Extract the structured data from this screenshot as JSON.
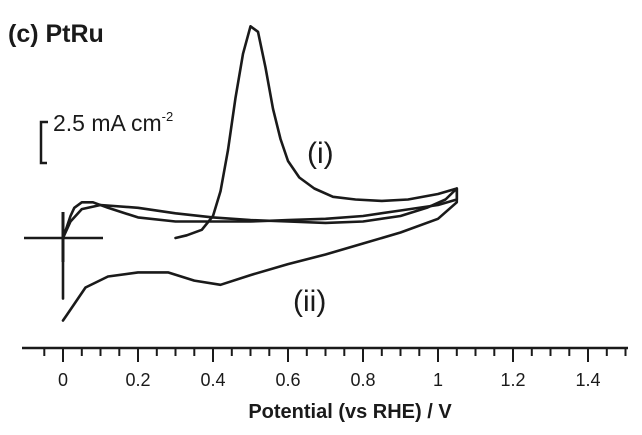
{
  "chart_data": {
    "type": "line",
    "panel_label": "(c) PtRu",
    "xlabel": "Potential (vs RHE) / V",
    "ylabel": "",
    "xlim": [
      -0.05,
      1.55
    ],
    "x_ticks": [
      "0",
      "0.2",
      "0.4",
      "0.6",
      "0.8",
      "1",
      "1.2",
      "1.4"
    ],
    "x_tick_values": [
      0,
      0.2,
      0.4,
      0.6,
      0.8,
      1.0,
      1.2,
      1.4
    ],
    "x_minor_step": 0.05,
    "ylim": [
      -3.8,
      8.2
    ],
    "y_units": "mA cm-2",
    "grid": false,
    "scale_bar": {
      "value": 2.5,
      "label_main": "2.5 mA cm",
      "label_exp": "-2"
    },
    "series": [
      {
        "label": "(i)",
        "x": [
          0.3,
          0.33,
          0.37,
          0.4,
          0.42,
          0.44,
          0.46,
          0.48,
          0.5,
          0.52,
          0.54,
          0.56,
          0.58,
          0.6,
          0.63,
          0.67,
          0.72,
          0.78,
          0.85,
          0.92,
          1.0,
          1.05,
          1.05,
          1.0,
          0.9,
          0.8,
          0.7,
          0.6,
          0.5,
          0.4,
          0.3,
          0.2,
          0.12,
          0.08,
          0.05,
          0.03,
          0.02,
          0.01,
          0.0,
          0.0,
          0.0
        ],
        "y": [
          0.0,
          0.1,
          0.3,
          0.8,
          1.7,
          3.2,
          5.1,
          6.7,
          7.7,
          7.5,
          6.2,
          4.7,
          3.6,
          2.8,
          2.2,
          1.8,
          1.5,
          1.4,
          1.35,
          1.4,
          1.6,
          1.8,
          1.4,
          1.2,
          1.0,
          0.8,
          0.7,
          0.65,
          0.6,
          0.6,
          0.6,
          0.75,
          1.1,
          1.3,
          1.3,
          1.1,
          0.8,
          0.4,
          0.0,
          -1.0,
          -2.2
        ]
      },
      {
        "label": "(ii)",
        "x": [
          0.0,
          0.02,
          0.05,
          0.1,
          0.2,
          0.3,
          0.4,
          0.5,
          0.6,
          0.7,
          0.8,
          0.9,
          0.97,
          1.02,
          1.05,
          1.05,
          1.0,
          0.9,
          0.8,
          0.7,
          0.6,
          0.5,
          0.42,
          0.35,
          0.28,
          0.2,
          0.12,
          0.06,
          0.03,
          0.01,
          0.0
        ],
        "y": [
          0.0,
          0.6,
          1.05,
          1.2,
          1.1,
          0.9,
          0.75,
          0.65,
          0.6,
          0.55,
          0.6,
          0.8,
          1.1,
          1.4,
          1.8,
          1.3,
          0.7,
          0.2,
          -0.2,
          -0.6,
          -0.95,
          -1.35,
          -1.7,
          -1.55,
          -1.25,
          -1.25,
          -1.4,
          -1.8,
          -2.4,
          -2.8,
          -3.0
        ]
      }
    ],
    "annotations": [
      {
        "text": "(i)",
        "x": 0.83,
        "y": 3.0
      },
      {
        "text": "(ii)",
        "x": 0.76,
        "y": -1.9
      }
    ]
  }
}
